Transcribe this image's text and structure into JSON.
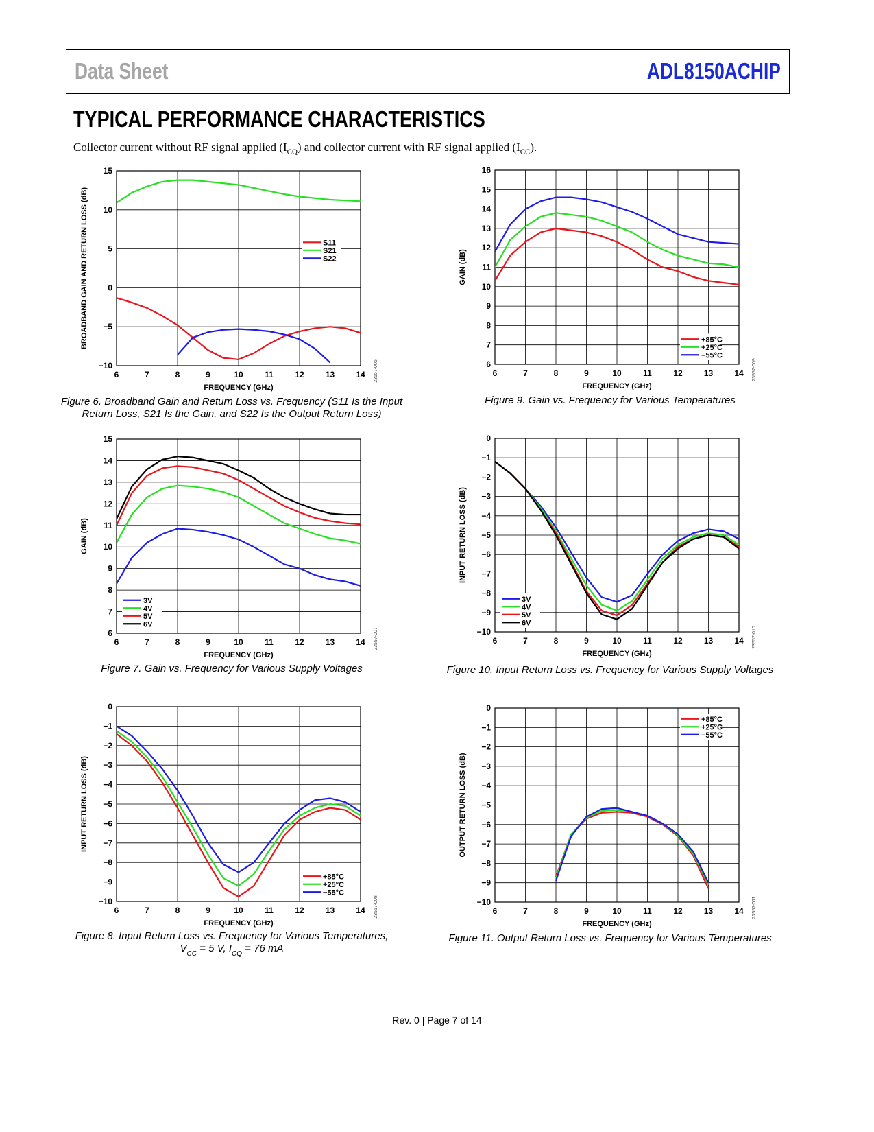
{
  "header": {
    "left": "Data Sheet",
    "right": "ADL8150ACHIP"
  },
  "section_title": "TYPICAL PERFORMANCE CHARACTERISTICS",
  "intro": [
    {
      "text": "Collector current without RF signal applied (I"
    },
    {
      "text": "CQ",
      "sub": true
    },
    {
      "text": ") and collector current with RF signal applied (I"
    },
    {
      "text": "CC",
      "sub": true
    },
    {
      "text": ")."
    }
  ],
  "chart_data": [
    {
      "type": "line",
      "figure_id": "23557-006",
      "ylabel": "BROADBAND GAIN AND RETURN LOSS (dB)",
      "xlabel": "FREQUENCY (GHz)",
      "grid": true,
      "legend": "center right",
      "caption": [
        "Figure 6. Broadband Gain and Return Loss vs. Frequency (S11 Is the Input",
        "Return Loss, S21 Is the Gain, and S22 Is the Output Return Loss)"
      ],
      "x": [
        6,
        6.5,
        7,
        7.5,
        8,
        8.5,
        9,
        9.5,
        10,
        10.5,
        11,
        11.5,
        12,
        12.5,
        13,
        13.5,
        14
      ],
      "xlim": [
        6,
        14
      ],
      "xticks": [
        6,
        7,
        8,
        9,
        10,
        11,
        12,
        13,
        14
      ],
      "ylim": [
        -10,
        15
      ],
      "yticks": [
        {
          "value": -10,
          "label": "−10"
        },
        {
          "value": -5,
          "label": "−5"
        },
        0,
        5,
        10,
        15
      ],
      "series": [
        {
          "name": "S11",
          "color": "#e8161b",
          "values": [
            -1.3,
            -1.9,
            -2.6,
            -3.6,
            -4.8,
            -6.4,
            -8.0,
            -9.0,
            -9.2,
            -8.4,
            -7.2,
            -6.2,
            -5.6,
            -5.2,
            -5.0,
            -5.2,
            -5.8
          ]
        },
        {
          "name": "S21",
          "color": "#27e022",
          "values": [
            10.9,
            12.2,
            13.0,
            13.6,
            13.8,
            13.8,
            13.6,
            13.4,
            13.2,
            12.8,
            12.4,
            12.0,
            11.7,
            11.5,
            11.3,
            11.2,
            11.1
          ]
        },
        {
          "name": "S22",
          "color": "#1c1ce6",
          "values": [
            null,
            null,
            null,
            null,
            -8.6,
            -6.4,
            -5.7,
            -5.4,
            -5.3,
            -5.4,
            -5.6,
            -6.0,
            -6.6,
            -7.8,
            -9.6,
            null,
            null
          ]
        }
      ]
    },
    {
      "type": "line",
      "figure_id": "23557-007",
      "ylabel": "GAIN (dB)",
      "xlabel": "FREQUENCY (GHz)",
      "grid": true,
      "legend": "lower left",
      "caption": [
        "Figure 7. Gain vs. Frequency for Various Supply Voltages"
      ],
      "x": [
        6,
        6.5,
        7,
        7.5,
        8,
        8.5,
        9,
        9.5,
        10,
        10.5,
        11,
        11.5,
        12,
        12.5,
        13,
        13.5,
        14
      ],
      "xlim": [
        6,
        14
      ],
      "xticks": [
        6,
        7,
        8,
        9,
        10,
        11,
        12,
        13,
        14
      ],
      "ylim": [
        6,
        15
      ],
      "yticks": [
        6,
        7,
        8,
        9,
        10,
        11,
        12,
        13,
        14,
        15
      ],
      "series": [
        {
          "name": "3V",
          "color": "#1c1ce6",
          "values": [
            8.3,
            9.5,
            10.2,
            10.6,
            10.85,
            10.8,
            10.7,
            10.55,
            10.35,
            10.0,
            9.6,
            9.2,
            9.0,
            8.7,
            8.5,
            8.4,
            8.2
          ]
        },
        {
          "name": "4V",
          "color": "#27e022",
          "values": [
            10.2,
            11.5,
            12.3,
            12.7,
            12.85,
            12.8,
            12.7,
            12.55,
            12.3,
            11.9,
            11.5,
            11.1,
            10.85,
            10.6,
            10.4,
            10.3,
            10.15
          ]
        },
        {
          "name": "5V",
          "color": "#e8161b",
          "values": [
            11.0,
            12.5,
            13.3,
            13.65,
            13.75,
            13.7,
            13.55,
            13.4,
            13.1,
            12.7,
            12.3,
            11.9,
            11.6,
            11.35,
            11.2,
            11.1,
            11.05
          ]
        },
        {
          "name": "6V",
          "color": "#000000",
          "values": [
            11.3,
            12.8,
            13.6,
            14.05,
            14.2,
            14.15,
            14.0,
            13.85,
            13.55,
            13.2,
            12.7,
            12.3,
            12.0,
            11.75,
            11.55,
            11.5,
            11.5
          ]
        }
      ]
    },
    {
      "type": "line",
      "figure_id": "23557-008",
      "ylabel": "INPUT RETURN LOSS (dB)",
      "xlabel": "FREQUENCY (GHz)",
      "grid": true,
      "legend": "lower right",
      "caption": [
        "Figure 8. Input Return Loss vs. Frequency for Various Temperatures,",
        [
          {
            "text": "V"
          },
          {
            "text": "CC",
            "sub": true
          },
          {
            "text": " = 5 V, I"
          },
          {
            "text": "CQ",
            "sub": true
          },
          {
            "text": " = 76 mA"
          }
        ]
      ],
      "x": [
        6,
        6.5,
        7,
        7.5,
        8,
        8.5,
        9,
        9.5,
        10,
        10.5,
        11,
        11.5,
        12,
        12.5,
        13,
        13.5,
        14
      ],
      "xlim": [
        6,
        14
      ],
      "xticks": [
        6,
        7,
        8,
        9,
        10,
        11,
        12,
        13,
        14
      ],
      "ylim": [
        -10,
        0
      ],
      "yticks": [
        {
          "value": -10,
          "label": "−10"
        },
        {
          "value": -9,
          "label": "−9"
        },
        {
          "value": -8,
          "label": "−8"
        },
        {
          "value": -7,
          "label": "−7"
        },
        {
          "value": -6,
          "label": "−6"
        },
        {
          "value": -5,
          "label": "−5"
        },
        {
          "value": -4,
          "label": "−4"
        },
        {
          "value": -3,
          "label": "−3"
        },
        {
          "value": -2,
          "label": "−2"
        },
        {
          "value": -1,
          "label": "−1"
        },
        0
      ],
      "series": [
        {
          "name": "+85°C",
          "color": "#e8161b",
          "values": [
            -1.4,
            -2.0,
            -2.8,
            -3.9,
            -5.2,
            -6.6,
            -8.0,
            -9.3,
            -9.75,
            -9.2,
            -7.9,
            -6.6,
            -5.8,
            -5.4,
            -5.2,
            -5.3,
            -5.8
          ]
        },
        {
          "name": "+25°C",
          "color": "#27e022",
          "values": [
            -1.25,
            -1.8,
            -2.6,
            -3.6,
            -4.9,
            -6.2,
            -7.6,
            -8.8,
            -9.2,
            -8.6,
            -7.4,
            -6.3,
            -5.6,
            -5.2,
            -5.0,
            -5.1,
            -5.6
          ]
        },
        {
          "name": "−55°C",
          "color": "#1c1ce6",
          "values": [
            -1.0,
            -1.5,
            -2.3,
            -3.2,
            -4.3,
            -5.6,
            -7.0,
            -8.1,
            -8.5,
            -8.0,
            -7.0,
            -6.0,
            -5.3,
            -4.8,
            -4.7,
            -4.9,
            -5.4
          ]
        }
      ]
    },
    {
      "type": "line",
      "figure_id": "23557-009",
      "ylabel": "GAIN (dB)",
      "xlabel": "FREQUENCY (GHz)",
      "grid": true,
      "legend": "lower right",
      "caption": [
        "Figure 9. Gain vs. Frequency for Various Temperatures"
      ],
      "x": [
        6,
        6.5,
        7,
        7.5,
        8,
        8.5,
        9,
        9.5,
        10,
        10.5,
        11,
        11.5,
        12,
        12.5,
        13,
        13.5,
        14
      ],
      "xlim": [
        6,
        14
      ],
      "xticks": [
        6,
        7,
        8,
        9,
        10,
        11,
        12,
        13,
        14
      ],
      "ylim": [
        6,
        16
      ],
      "yticks": [
        6,
        7,
        8,
        9,
        10,
        11,
        12,
        13,
        14,
        15,
        16
      ],
      "series": [
        {
          "name": "+85°C",
          "color": "#e8161b",
          "values": [
            10.3,
            11.6,
            12.3,
            12.8,
            13.0,
            12.9,
            12.8,
            12.6,
            12.3,
            11.9,
            11.4,
            11.0,
            10.8,
            10.5,
            10.3,
            10.2,
            10.1
          ]
        },
        {
          "name": "+25°C",
          "color": "#27e022",
          "values": [
            11.0,
            12.4,
            13.1,
            13.6,
            13.8,
            13.7,
            13.6,
            13.4,
            13.1,
            12.8,
            12.3,
            11.9,
            11.6,
            11.4,
            11.2,
            11.15,
            11.0
          ]
        },
        {
          "name": "−55°C",
          "color": "#1c1ce6",
          "values": [
            11.8,
            13.2,
            14.0,
            14.4,
            14.6,
            14.6,
            14.5,
            14.35,
            14.1,
            13.85,
            13.5,
            13.1,
            12.7,
            12.5,
            12.3,
            12.25,
            12.2
          ]
        }
      ]
    },
    {
      "type": "line",
      "figure_id": "23557-010",
      "ylabel": "INPUT RETURN LOSS (dB)",
      "xlabel": "FREQUENCY (GHz)",
      "grid": true,
      "legend": "lower left",
      "caption": [
        "Figure 10. Input Return Loss vs. Frequency for Various Supply Voltages"
      ],
      "x": [
        6,
        6.5,
        7,
        7.5,
        8,
        8.5,
        9,
        9.5,
        10,
        10.5,
        11,
        11.5,
        12,
        12.5,
        13,
        13.5,
        14
      ],
      "xlim": [
        6,
        14
      ],
      "xticks": [
        6,
        7,
        8,
        9,
        10,
        11,
        12,
        13,
        14
      ],
      "ylim": [
        -10,
        0
      ],
      "yticks": [
        {
          "value": -10,
          "label": "−10"
        },
        {
          "value": -9,
          "label": "−9"
        },
        {
          "value": -8,
          "label": "−8"
        },
        {
          "value": -7,
          "label": "−7"
        },
        {
          "value": -6,
          "label": "−6"
        },
        {
          "value": -5,
          "label": "−5"
        },
        {
          "value": -4,
          "label": "−4"
        },
        {
          "value": -3,
          "label": "−3"
        },
        {
          "value": -2,
          "label": "−2"
        },
        {
          "value": -1,
          "label": "−1"
        },
        0
      ],
      "series": [
        {
          "name": "3V",
          "color": "#1c1ce6",
          "values": [
            -1.2,
            -1.8,
            -2.6,
            -3.5,
            -4.6,
            -5.9,
            -7.2,
            -8.2,
            -8.45,
            -8.1,
            -7.0,
            -6.0,
            -5.3,
            -4.9,
            -4.7,
            -4.8,
            -5.2
          ]
        },
        {
          "name": "4V",
          "color": "#27e022",
          "values": [
            -1.2,
            -1.8,
            -2.6,
            -3.6,
            -4.8,
            -6.2,
            -7.6,
            -8.6,
            -8.9,
            -8.4,
            -7.3,
            -6.2,
            -5.5,
            -5.1,
            -4.9,
            -5.0,
            -5.5
          ]
        },
        {
          "name": "5V",
          "color": "#e8161b",
          "values": [
            -1.2,
            -1.8,
            -2.6,
            -3.7,
            -4.9,
            -6.4,
            -7.9,
            -8.9,
            -9.15,
            -8.6,
            -7.5,
            -6.4,
            -5.6,
            -5.2,
            -5.0,
            -5.1,
            -5.6
          ]
        },
        {
          "name": "6V",
          "color": "#000000",
          "values": [
            -1.2,
            -1.8,
            -2.6,
            -3.7,
            -5.0,
            -6.5,
            -8.0,
            -9.1,
            -9.35,
            -8.8,
            -7.6,
            -6.4,
            -5.7,
            -5.2,
            -5.0,
            -5.1,
            -5.7
          ]
        }
      ]
    },
    {
      "type": "line",
      "figure_id": "23557-011",
      "ylabel": "OUTPUT RETURN LOSS (dB)",
      "xlabel": "FREQUENCY (GHz)",
      "grid": true,
      "legend": "upper right",
      "caption": [
        "Figure 11. Output Return Loss vs. Frequency for Various Temperatures"
      ],
      "x": [
        6,
        6.5,
        7,
        7.5,
        8,
        8.5,
        9,
        9.5,
        10,
        10.5,
        11,
        11.5,
        12,
        12.5,
        13,
        13.5,
        14
      ],
      "xlim": [
        6,
        14
      ],
      "xticks": [
        6,
        7,
        8,
        9,
        10,
        11,
        12,
        13,
        14
      ],
      "ylim": [
        -10,
        0
      ],
      "yticks": [
        {
          "value": -10,
          "label": "−10"
        },
        {
          "value": -9,
          "label": "−9"
        },
        {
          "value": -8,
          "label": "−8"
        },
        {
          "value": -7,
          "label": "−7"
        },
        {
          "value": -6,
          "label": "−6"
        },
        {
          "value": -5,
          "label": "−5"
        },
        {
          "value": -4,
          "label": "−4"
        },
        {
          "value": -3,
          "label": "−3"
        },
        {
          "value": -2,
          "label": "−2"
        },
        {
          "value": -1,
          "label": "−1"
        },
        0
      ],
      "series": [
        {
          "name": "+85°C",
          "color": "#e8161b",
          "values": [
            null,
            null,
            null,
            null,
            -8.7,
            -6.5,
            -5.7,
            -5.4,
            -5.35,
            -5.4,
            -5.6,
            -6.0,
            -6.6,
            -7.6,
            -9.3,
            null,
            null
          ]
        },
        {
          "name": "+25°C",
          "color": "#27e022",
          "values": [
            null,
            null,
            null,
            null,
            -8.8,
            -6.5,
            -5.65,
            -5.3,
            -5.25,
            -5.35,
            -5.55,
            -5.95,
            -6.55,
            -7.5,
            -9.1,
            null,
            null
          ]
        },
        {
          "name": "−55°C",
          "color": "#1c1ce6",
          "values": [
            null,
            null,
            null,
            null,
            -8.9,
            -6.6,
            -5.6,
            -5.2,
            -5.15,
            -5.35,
            -5.55,
            -5.95,
            -6.5,
            -7.4,
            -9.0,
            null,
            null
          ]
        }
      ]
    }
  ],
  "footer": "Rev. 0 | Page 7 of 14"
}
